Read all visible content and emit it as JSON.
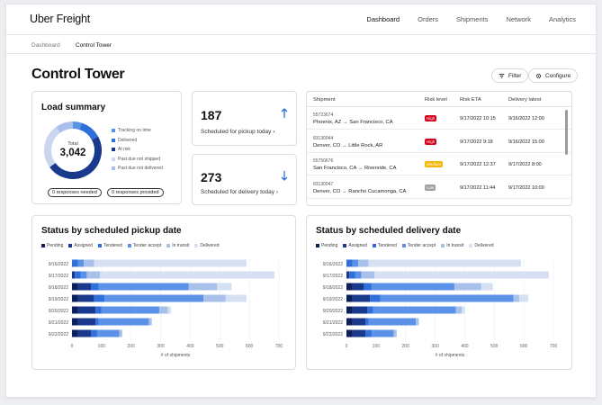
{
  "brand": "Uber Freight",
  "nav": [
    "Dashboard",
    "Orders",
    "Shipments",
    "Network",
    "Analytics"
  ],
  "breadcrumb": [
    "Dashboard",
    "Control Tower"
  ],
  "page_title": "Control Tower",
  "buttons": {
    "filter": "Filter",
    "configure": "Configure"
  },
  "load_summary": {
    "title": "Load summary",
    "total_label": "Total",
    "total_value": "3,042",
    "legend": [
      "Tracking on time",
      "Delivered",
      "At risk",
      "Past due not shipped",
      "Past due not delivered"
    ],
    "colors": [
      "#5b91e6",
      "#2f6fdc",
      "#18398c",
      "#c9d7ee",
      "#a9c1ea"
    ],
    "donut_fractions": [
      0.05,
      0.12,
      0.48,
      0.25,
      0.1
    ],
    "responses_needed": "0 responses needed",
    "responses_provided": "0 responses provided"
  },
  "pickup_card": {
    "value": "187",
    "label": "Scheduled for pickup today",
    "arrow": "›"
  },
  "delivery_card": {
    "value": "273",
    "label": "Scheduled for delivery today",
    "arrow": "›"
  },
  "shipments_table": {
    "headers": [
      "Shipment",
      "Risk level",
      "Risk ETA",
      "Delivery latest"
    ],
    "rows": [
      {
        "id": "55723674",
        "route": "Phoenix, AZ → San Francisco, CA",
        "risk": "High",
        "risk_color": "#d6001c",
        "eta": "9/17/2022 10:15",
        "latest": "9/16/2022 12:00"
      },
      {
        "id": "83130044",
        "route": "Denver, CO → Little Rock, AR",
        "risk": "High",
        "risk_color": "#d6001c",
        "eta": "9/17/2022 9:18",
        "latest": "9/16/2022 15:00"
      },
      {
        "id": "55750676",
        "route": "San Francisco, CA → Riverside, CA",
        "risk": "Medium",
        "risk_color": "#f2b705",
        "eta": "9/17/2022 12:37",
        "latest": "9/17/2022 8:00"
      },
      {
        "id": "83130047",
        "route": "Denver, CO → Rancho Cucamonga, CA",
        "risk": "Low",
        "risk_color": "#a0a0a0",
        "eta": "9/17/2022 11:44",
        "latest": "9/17/2022 10:00"
      },
      {
        "id": "",
        "route": "",
        "risk": "",
        "risk_color": "#ffffff",
        "eta": "",
        "latest": ""
      }
    ]
  },
  "series_colors": {
    "Pending": "#0b1f5c",
    "Assigned": "#18398c",
    "Tendered": "#2f6fdc",
    "Tender accept": "#5b91e6",
    "In transit": "#a9c1ea",
    "Delivered": "#d5e0f3"
  },
  "chart_data": [
    {
      "type": "bar",
      "orientation": "horizontal",
      "stacked": true,
      "title": "Status by scheduled pickup date",
      "xlabel": "# of shipments",
      "ylabel": "",
      "xlim": [
        0,
        700
      ],
      "xticks": [
        0,
        100,
        200,
        300,
        400,
        500,
        600,
        700
      ],
      "categories": [
        "9/16/2022",
        "9/17/2022",
        "9/18/2022",
        "9/19/2022",
        "9/20/2022",
        "9/21/2022",
        "9/22/2022"
      ],
      "series": [
        {
          "name": "Pending",
          "values": [
            0,
            0,
            20,
            20,
            20,
            20,
            20
          ]
        },
        {
          "name": "Assigned",
          "values": [
            0,
            10,
            45,
            55,
            60,
            60,
            45
          ]
        },
        {
          "name": "Tendered",
          "values": [
            20,
            20,
            25,
            35,
            20,
            10,
            20
          ]
        },
        {
          "name": "Tender accept",
          "values": [
            20,
            20,
            305,
            335,
            195,
            170,
            75
          ]
        },
        {
          "name": "In transit",
          "values": [
            35,
            45,
            95,
            75,
            30,
            10,
            10
          ]
        },
        {
          "name": "Delivered",
          "values": [
            515,
            590,
            50,
            70,
            10,
            0,
            0
          ]
        }
      ]
    },
    {
      "type": "bar",
      "orientation": "horizontal",
      "stacked": true,
      "title": "Status by scheduled delivery date",
      "xlabel": "# of shipments",
      "ylabel": "",
      "xlim": [
        0,
        700
      ],
      "xticks": [
        0,
        100,
        200,
        300,
        400,
        500,
        600,
        700
      ],
      "categories": [
        "9/16/2022",
        "9/17/2022",
        "9/18/2022",
        "9/19/2022",
        "9/20/2022",
        "9/21/2022",
        "9/22/2022"
      ],
      "series": [
        {
          "name": "Pending",
          "values": [
            0,
            0,
            20,
            20,
            20,
            20,
            20
          ]
        },
        {
          "name": "Assigned",
          "values": [
            0,
            10,
            40,
            60,
            50,
            45,
            45
          ]
        },
        {
          "name": "Tendered",
          "values": [
            20,
            20,
            25,
            35,
            20,
            10,
            20
          ]
        },
        {
          "name": "Tender accept",
          "values": [
            20,
            20,
            280,
            450,
            280,
            160,
            75
          ]
        },
        {
          "name": "In transit",
          "values": [
            35,
            45,
            90,
            20,
            20,
            10,
            10
          ]
        },
        {
          "name": "Delivered",
          "values": [
            515,
            590,
            40,
            30,
            10,
            0,
            0
          ]
        }
      ]
    }
  ]
}
